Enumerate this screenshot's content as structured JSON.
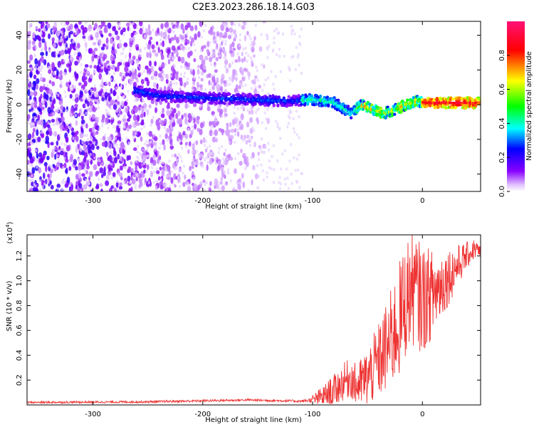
{
  "title": "C2E3.2023.286.18.14.G03",
  "chart_data": [
    {
      "type": "heatmap",
      "xlabel": "Height of straight line (km)",
      "ylabel": "Frequency (Hz)",
      "xlim": [
        -360,
        53
      ],
      "ylim": [
        -50,
        48
      ],
      "x_ticks": [
        -300,
        -200,
        -100,
        0
      ],
      "x_tick_labels": [
        "-300",
        "-200",
        "-100",
        "0"
      ],
      "y_ticks": [
        -40,
        -20,
        0,
        20,
        40
      ],
      "y_tick_labels": [
        "-40",
        "-20",
        "0",
        "20",
        "40"
      ],
      "colorbar": {
        "label": "Normalized spectral amplitude",
        "range": [
          0,
          1
        ],
        "ticks": [
          0.0,
          0.2,
          0.4,
          0.6,
          0.8
        ],
        "tick_labels": [
          "0.0",
          "0.2",
          "0.4",
          "0.6",
          "0.8"
        ],
        "colormap": [
          "#ffffff",
          "#8800ff",
          "#0000ff",
          "#00ffff",
          "#00ff00",
          "#ffff00",
          "#ff0000",
          "#ff1177"
        ]
      },
      "ridge": {
        "x": [
          -260,
          -240,
          -200,
          -160,
          -120,
          -100,
          -80,
          -65,
          -55,
          -45,
          -35,
          -25,
          -15,
          -5,
          5,
          20,
          53
        ],
        "y": [
          8,
          5,
          4,
          3,
          2,
          3,
          1,
          -5,
          0,
          -3,
          -5,
          -3,
          0,
          2,
          1,
          1,
          1
        ]
      },
      "grid": false
    },
    {
      "type": "line",
      "xlabel": "Height of straight line (km)",
      "ylabel": "SNR (10 * v/v)",
      "y_multiplier_label": "(x10",
      "y_multiplier_exp": "4",
      "y_multiplier_close": ")",
      "xlim": [
        -360,
        53
      ],
      "ylim": [
        0,
        1.37
      ],
      "x_ticks": [
        -300,
        -200,
        -100,
        0
      ],
      "x_tick_labels": [
        "-300",
        "-200",
        "-100",
        "0"
      ],
      "y_ticks": [
        0.2,
        0.4,
        0.6,
        0.8,
        1.0,
        1.2
      ],
      "y_tick_labels": [
        "0.2",
        "0.4",
        "0.6",
        "0.8",
        "1.0",
        "1.2"
      ],
      "series": [
        {
          "color": "#ee3333",
          "envelope": {
            "x": [
              -360,
              -250,
              -160,
              -110,
              -100,
              -90,
              -80,
              -70,
              -65,
              -60,
              -50,
              -40,
              -30,
              -20,
              -15,
              -10,
              -5,
              0,
              10,
              20,
              30,
              40,
              48,
              53
            ],
            "y": [
              0.02,
              0.025,
              0.04,
              0.03,
              0.04,
              0.07,
              0.12,
              0.2,
              0.22,
              0.15,
              0.22,
              0.35,
              0.5,
              0.7,
              0.85,
              0.95,
              0.9,
              0.85,
              0.9,
              1.0,
              1.1,
              1.2,
              1.26,
              1.22
            ]
          },
          "noise": {
            "x": [
              -360,
              -110,
              -100,
              -80,
              -60,
              -40,
              -20,
              0,
              20,
              40,
              53
            ],
            "y": [
              0.008,
              0.01,
              0.02,
              0.06,
              0.08,
              0.14,
              0.22,
              0.2,
              0.12,
              0.05,
              0.03
            ]
          }
        }
      ],
      "grid": false
    }
  ]
}
